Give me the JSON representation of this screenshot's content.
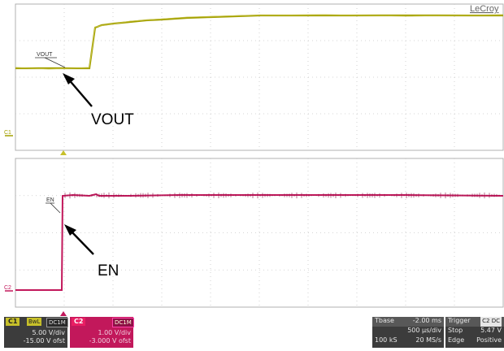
{
  "brand": "LeCroy",
  "traces": {
    "top": {
      "marker": "C1",
      "label": "VOUT",
      "annotation": "VOUT",
      "color": "#a3a000"
    },
    "bottom": {
      "marker": "C2",
      "label": "EN",
      "annotation": "EN",
      "color": "#c2185b"
    }
  },
  "channel1": {
    "name": "C1",
    "coupling": "BwL",
    "impedance": "DC1M",
    "scale": "5.00 V/div",
    "offset": "-15.00 V ofst"
  },
  "channel2": {
    "name": "C2",
    "impedance": "DC1M",
    "scale": "1.00 V/div",
    "offset": "-3.000 V ofst"
  },
  "timebase": {
    "title": "Tbase",
    "delay": "-2.00 ms",
    "scale": "500 µs/div",
    "samples": "100 kS",
    "rate": "20 MS/s"
  },
  "trigger": {
    "title": "Trigger",
    "source": "C2 DC",
    "mode": "Stop",
    "level": "5.47 V",
    "type": "Edge",
    "slope": "Positive"
  }
}
